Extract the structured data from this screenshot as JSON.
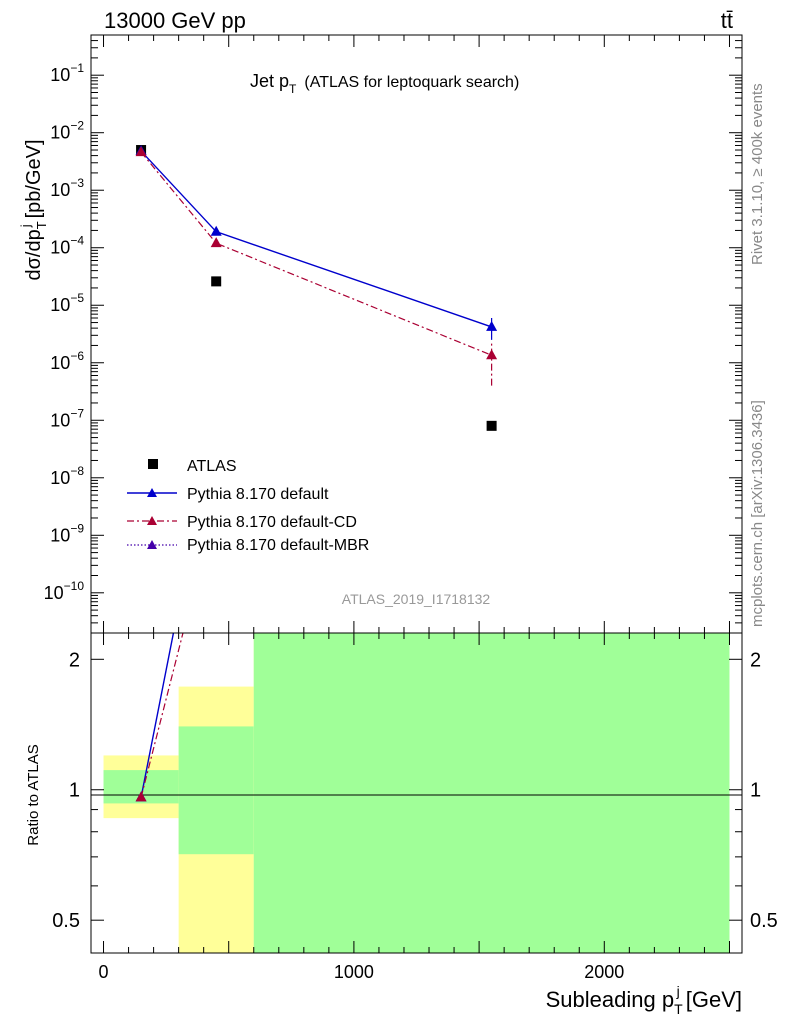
{
  "header": {
    "left": "13000 GeV pp",
    "right": "tt̄"
  },
  "side_labels": {
    "rivet": "Rivet 3.1.10, ≥ 400k events",
    "mcplots": "mcplots.cern.ch [arXiv:1306.3436]"
  },
  "colors": {
    "data": "#000000",
    "pythia_default": "#0000cc",
    "pythia_cd": "#aa0033",
    "pythia_mbr": "#4400aa",
    "band_inner": "#a0ff98",
    "band_outer": "#ffff99"
  },
  "chart_data": [
    {
      "type": "scatter",
      "panel": "main",
      "title_main": "Jet p",
      "title_sub": "T",
      "title_rest": "(ATLAS for leptoquark search)",
      "ylabel_pre": "dσ/dp",
      "ylabel_sub": "T",
      "ylabel_sup": "j",
      "ylabel_post": "[pb/GeV]",
      "yscale": "log",
      "ylim": [
        2e-11,
        0.5
      ],
      "xlim": [
        -50,
        2550
      ],
      "y_ticks": [
        {
          "value": 1e-10,
          "label_base": "10",
          "label_exp": "−10"
        },
        {
          "value": 1e-09,
          "label_base": "10",
          "label_exp": "−9"
        },
        {
          "value": 1e-08,
          "label_base": "10",
          "label_exp": "−8"
        },
        {
          "value": 1e-07,
          "label_base": "10",
          "label_exp": "−7"
        },
        {
          "value": 1e-06,
          "label_base": "10",
          "label_exp": "−6"
        },
        {
          "value": 1e-05,
          "label_base": "10",
          "label_exp": "−5"
        },
        {
          "value": 0.0001,
          "label_base": "10",
          "label_exp": "−4"
        },
        {
          "value": 0.001,
          "label_base": "10",
          "label_exp": "−3"
        },
        {
          "value": 0.01,
          "label_base": "10",
          "label_exp": "−2"
        },
        {
          "value": 0.1,
          "label_base": "10",
          "label_exp": "−1"
        }
      ],
      "watermark": "ATLAS_2019_I1718132",
      "legend_position": "lower-left",
      "series": [
        {
          "name": "ATLAS",
          "marker": "square",
          "x": [
            150,
            450,
            1550
          ],
          "y": [
            0.005,
            2.6e-05,
            8e-08
          ]
        },
        {
          "name": "Pythia 8.170 default",
          "marker": "triangle",
          "style": "solid",
          "x": [
            150,
            450,
            1550
          ],
          "y": [
            0.0048,
            0.00019,
            4.2e-06
          ],
          "yerr_low": [
            0.0045,
            0.00018,
            2.5e-06
          ],
          "yerr_high": [
            0.0051,
            0.0002,
            6e-06
          ]
        },
        {
          "name": "Pythia 8.170 default-CD",
          "marker": "triangle",
          "style": "dashdot",
          "x": [
            150,
            450,
            1550
          ],
          "y": [
            0.0046,
            0.00012,
            1.35e-06
          ],
          "yerr_low": [
            0.0043,
            0.00011,
            4e-07
          ],
          "yerr_high": [
            0.0049,
            0.00013,
            2.3e-06
          ]
        },
        {
          "name": "Pythia 8.170 default-MBR",
          "marker": "triangle",
          "style": "dotted",
          "x": [],
          "y": []
        }
      ]
    },
    {
      "type": "line",
      "panel": "ratio",
      "ylabel": "Ratio to ATLAS",
      "xlabel_pre": "Subleading p",
      "xlabel_sub": "T",
      "xlabel_sup": "j",
      "xlabel_post": "[GeV]",
      "yscale": "log",
      "ylim": [
        0.42,
        2.3
      ],
      "xlim": [
        -50,
        2550
      ],
      "y_ticks": [
        {
          "value": 0.5,
          "label": "0.5"
        },
        {
          "value": 1,
          "label": "1"
        },
        {
          "value": 2,
          "label": "2"
        }
      ],
      "x_ticks": [
        {
          "value": 0,
          "label": "0"
        },
        {
          "value": 1000,
          "label": "1000"
        },
        {
          "value": 2000,
          "label": "2000"
        }
      ],
      "bins": [
        {
          "x_low": 0,
          "x_high": 300,
          "inner": [
            0.93,
            1.11
          ],
          "outer": [
            0.86,
            1.2
          ]
        },
        {
          "x_low": 300,
          "x_high": 600,
          "inner": [
            0.71,
            1.4
          ],
          "outer": [
            0.42,
            1.73
          ]
        },
        {
          "x_low": 600,
          "x_high": 2500,
          "inner": [
            0.42,
            2.3
          ],
          "outer": [
            0.42,
            2.3
          ]
        }
      ],
      "series": [
        {
          "name": "Pythia 8.170 default",
          "x": [
            150,
            450
          ],
          "y": [
            0.96,
            7.3
          ]
        },
        {
          "name": "Pythia 8.170 default-CD",
          "x": [
            150,
            450
          ],
          "y": [
            0.96,
            4.6
          ]
        }
      ]
    }
  ]
}
